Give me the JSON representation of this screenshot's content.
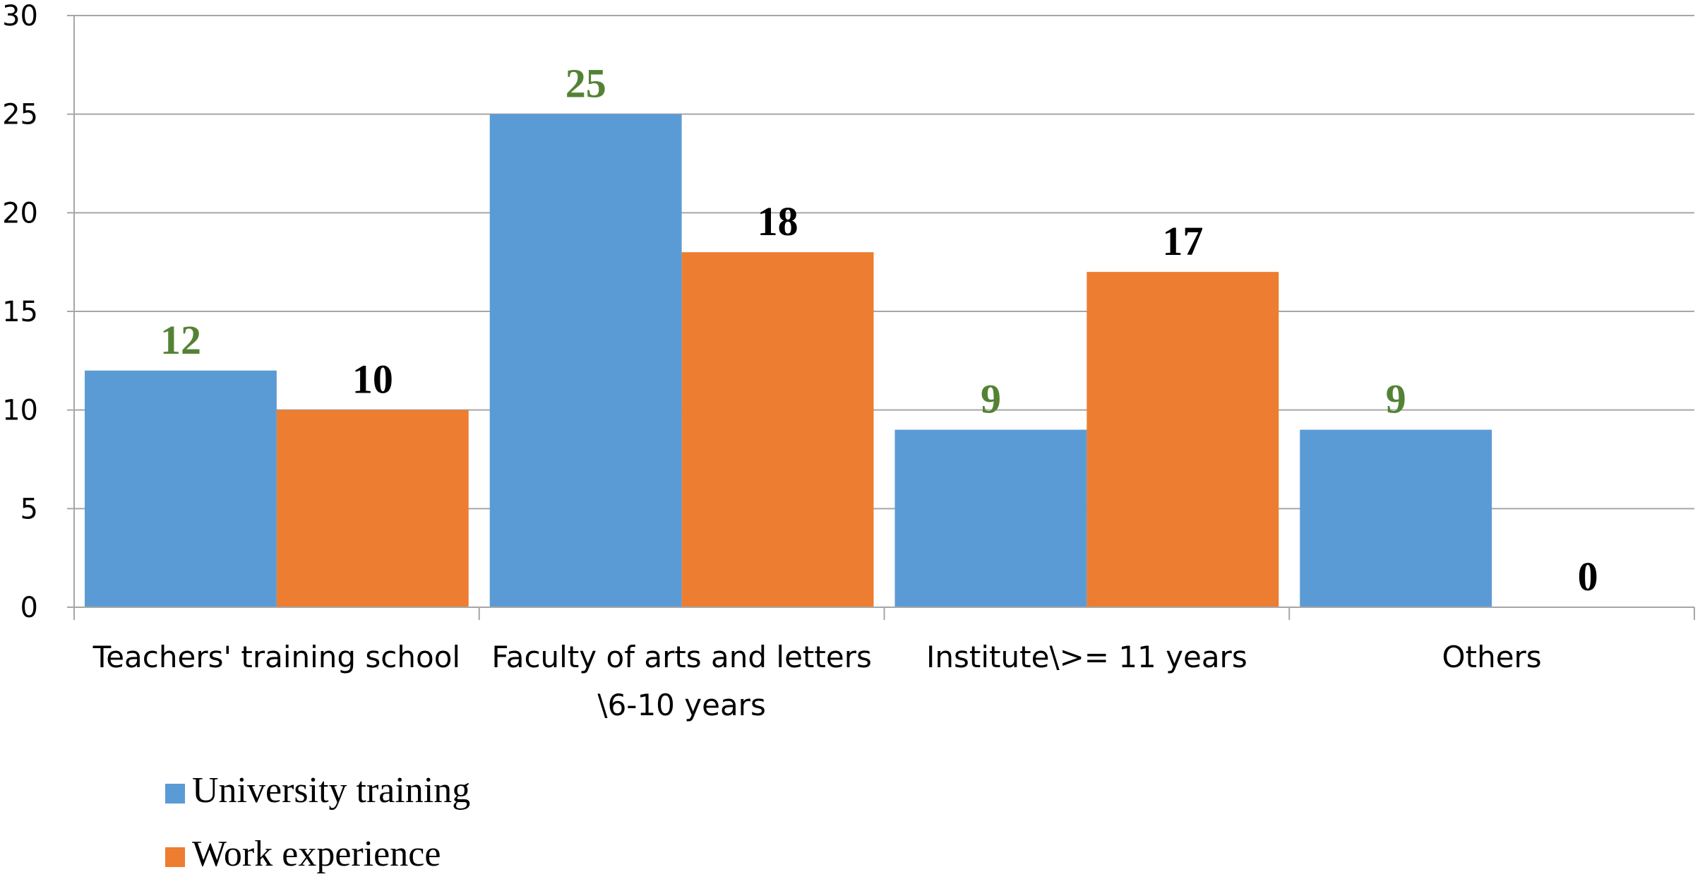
{
  "chart_data": {
    "type": "bar",
    "categories": [
      "Teachers' training school",
      "Faculty of arts and letters \\6-10 years",
      "Institute\\>= 11 years",
      "Others"
    ],
    "category_lines": [
      [
        "Teachers' training school"
      ],
      [
        "Faculty of arts and letters",
        "\\6-10 years"
      ],
      [
        "Institute\\>= 11 years"
      ],
      [
        "Others"
      ]
    ],
    "series": [
      {
        "name": "University training",
        "values": [
          12,
          25,
          9,
          9
        ],
        "color": "#5B9BD5",
        "label_color": "#548235"
      },
      {
        "name": "Work experience",
        "values": [
          10,
          18,
          17,
          0
        ],
        "color": "#ED7D31",
        "label_color": "#000000"
      }
    ],
    "ylim": [
      0,
      30
    ],
    "yticks": [
      0,
      5,
      10,
      15,
      20,
      25,
      30
    ],
    "grid": true,
    "legend_position": "bottom-left",
    "title": "",
    "xlabel": "",
    "ylabel": ""
  }
}
